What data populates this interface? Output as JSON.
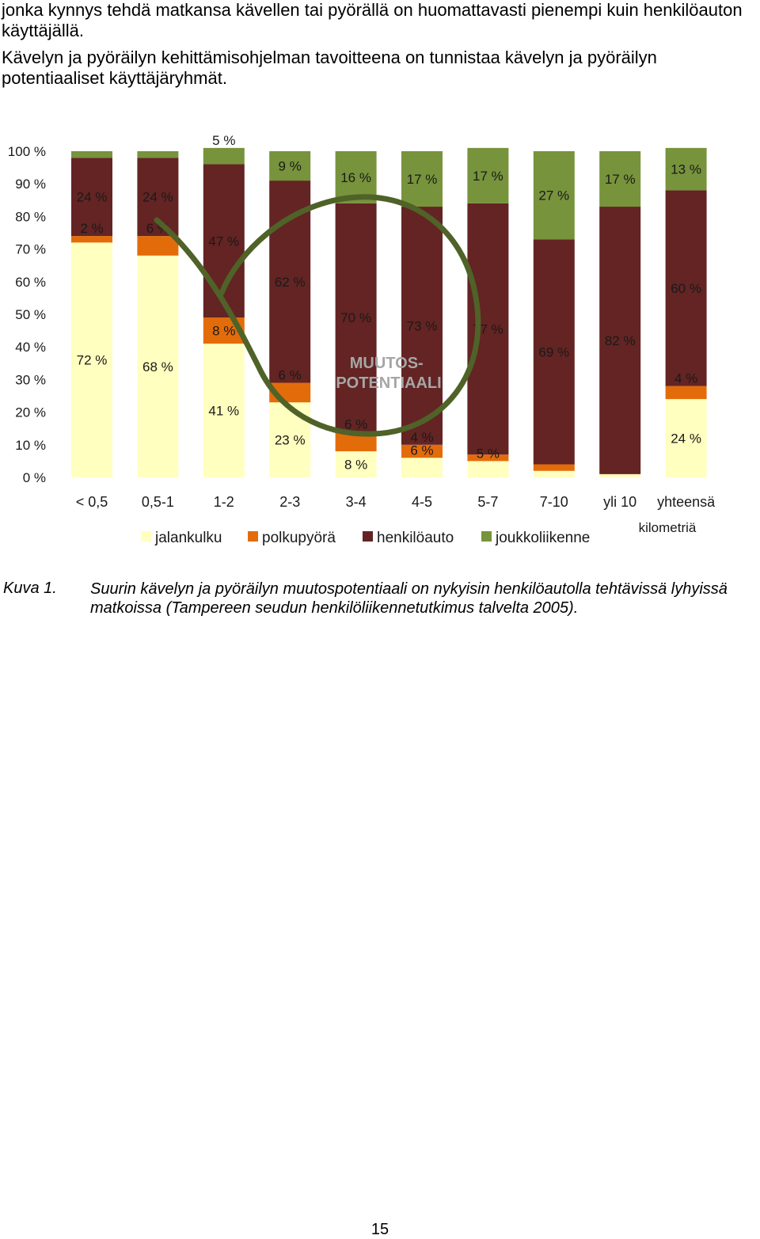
{
  "intro": {
    "p1": "jonka kynnys tehdä matkansa kävellen tai pyörällä on huomattavasti pienempi kuin henkilöauton käyttäjällä.",
    "p2": "Kävelyn ja pyöräilyn kehittämisohjelman tavoitteena on tunnistaa kävelyn ja pyöräilyn potentiaaliset käyttäjäryhmät."
  },
  "chart_data": {
    "type": "bar",
    "stacked": true,
    "title": "",
    "xlabel": "kilometriä",
    "ylabel": "",
    "ylim": [
      0,
      100
    ],
    "yticks": [
      "0 %",
      "10 %",
      "20 %",
      "30 %",
      "40 %",
      "50 %",
      "60 %",
      "70 %",
      "80 %",
      "90 %",
      "100 %"
    ],
    "categories": [
      "< 0,5",
      "0,5-1",
      "1-2",
      "2-3",
      "3-4",
      "4-5",
      "5-7",
      "7-10",
      "yli 10",
      "yhteensä"
    ],
    "series": [
      {
        "name": "jalankulku",
        "color": "#ffffbf",
        "values": [
          72,
          68,
          41,
          23,
          8,
          6,
          5,
          2,
          1,
          24
        ],
        "labels": [
          "72 %",
          "68 %",
          "41 %",
          "23 %",
          "8 %",
          "6 %",
          "5 %",
          "",
          "",
          "24 %"
        ]
      },
      {
        "name": "polkupyörä",
        "color": "#e36c0a",
        "values": [
          2,
          6,
          8,
          6,
          6,
          4,
          2,
          2,
          0,
          4
        ],
        "labels": [
          "2 %",
          "6 %",
          "8 %",
          "6 %",
          "6 %",
          "4 %",
          "",
          "",
          "",
          "4 %"
        ]
      },
      {
        "name": "henkilöauto",
        "color": "#632423",
        "values": [
          24,
          24,
          47,
          62,
          70,
          73,
          77,
          69,
          82,
          60
        ],
        "labels": [
          "24 %",
          "24 %",
          "47 %",
          "62 %",
          "70 %",
          "73 %",
          "77 %",
          "69 %",
          "82 %",
          "60 %"
        ]
      },
      {
        "name": "joukkoliikenne",
        "color": "#77933c",
        "values": [
          2,
          2,
          5,
          9,
          16,
          17,
          17,
          27,
          17,
          13
        ],
        "labels": [
          "",
          "",
          "5 %",
          "9 %",
          "16 %",
          "17 %",
          "17 %",
          "27 %",
          "17 %",
          "13 %"
        ]
      }
    ],
    "annotation": "MUUTOS-\nPOTENTIAALI",
    "annotation_color": "#4f6228",
    "legend_position": "bottom"
  },
  "caption": {
    "label": "Kuva 1.",
    "text": "Suurin kävelyn ja pyöräilyn muutospotentiaali on nykyisin henkilöautolla tehtävissä lyhyissä matkoissa (Tampereen seudun henkilöliikennetutkimus talvelta 2005)."
  },
  "page_number": "15"
}
